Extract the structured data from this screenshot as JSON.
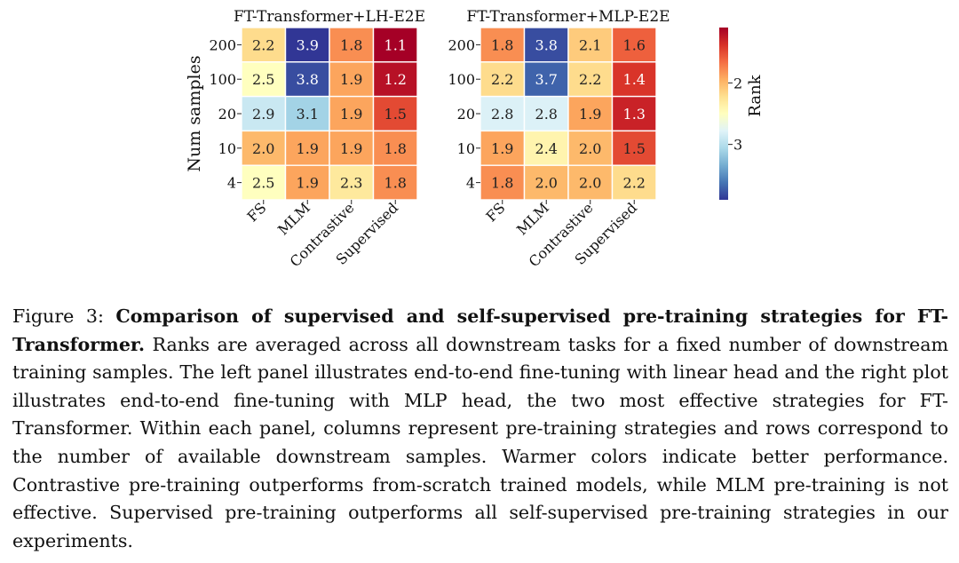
{
  "chart_data": [
    {
      "type": "heatmap",
      "title": "FT-Transformer+LH-E2E",
      "ylabel": "Num samples",
      "rows": [
        "200",
        "100",
        "20",
        "10",
        "4"
      ],
      "columns": [
        "FS",
        "MLM",
        "Contrastive",
        "Supervised"
      ],
      "values": [
        [
          2.2,
          3.9,
          1.8,
          1.1
        ],
        [
          2.5,
          3.8,
          1.9,
          1.2
        ],
        [
          2.9,
          3.1,
          1.9,
          1.5
        ],
        [
          2.0,
          1.9,
          1.9,
          1.8
        ],
        [
          2.5,
          1.9,
          2.3,
          1.8
        ]
      ]
    },
    {
      "type": "heatmap",
      "title": "FT-Transformer+MLP-E2E",
      "rows": [
        "200",
        "100",
        "20",
        "10",
        "4"
      ],
      "columns": [
        "FS",
        "MLM",
        "Contrastive",
        "Supervised"
      ],
      "values": [
        [
          1.8,
          3.8,
          2.1,
          1.6
        ],
        [
          2.2,
          3.7,
          2.2,
          1.4
        ],
        [
          2.8,
          2.8,
          1.9,
          1.3
        ],
        [
          1.9,
          2.4,
          2.0,
          1.5
        ],
        [
          1.8,
          2.0,
          2.0,
          2.2
        ]
      ]
    }
  ],
  "colorbar": {
    "label": "Rank",
    "range": [
      1.1,
      3.9
    ],
    "reversed": true,
    "colormap": "RdYlBu",
    "ticks": [
      "2",
      "3"
    ]
  },
  "caption": {
    "label": "Figure 3:",
    "bold": "Comparison of supervised and self-supervised pre-training strategies for FT-Transformer.",
    "text": "Ranks are averaged across all downstream tasks for a fixed number of downstream training samples. The left panel illustrates end-to-end fine-tuning with linear head and the right plot illustrates end-to-end fine-tuning with MLP head, the two most effective strategies for FT-Transformer. Within each panel, columns represent pre-training strategies and rows correspond to the number of available downstream samples. Warmer colors indicate better performance. Contrastive pre-training outperforms from-scratch trained models, while MLM pre-training is not effective. Supervised pre-training outperforms all self-supervised pre-training strategies in our experiments."
  }
}
